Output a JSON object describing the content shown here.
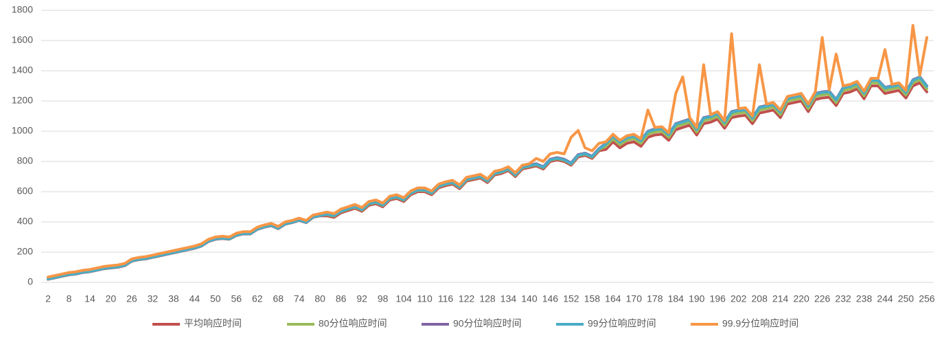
{
  "chart_data": {
    "type": "line",
    "categories": [
      2,
      null,
      null,
      8,
      null,
      null,
      14,
      null,
      null,
      20,
      null,
      null,
      26,
      null,
      null,
      32,
      null,
      null,
      38,
      null,
      null,
      44,
      null,
      null,
      50,
      null,
      null,
      56,
      null,
      null,
      62,
      null,
      null,
      68,
      null,
      null,
      74,
      null,
      null,
      80,
      null,
      null,
      86,
      null,
      null,
      92,
      null,
      null,
      98,
      null,
      null,
      104,
      null,
      null,
      110,
      null,
      null,
      116,
      null,
      null,
      122,
      null,
      null,
      128,
      null,
      null,
      134,
      null,
      null,
      140,
      null,
      null,
      146,
      null,
      null,
      152,
      null,
      null,
      158,
      null,
      null,
      164,
      null,
      null,
      170,
      null,
      null,
      178,
      null,
      null,
      184,
      null,
      null,
      190,
      null,
      null,
      196,
      null,
      null,
      202,
      null,
      null,
      208,
      null,
      null,
      214,
      null,
      null,
      220,
      null,
      null,
      226,
      null,
      null,
      232,
      null,
      null,
      238,
      null,
      null,
      244,
      null,
      null,
      250,
      null,
      null,
      256
    ],
    "ylim": [
      0,
      1800
    ],
    "yticks": [
      0,
      200,
      400,
      600,
      800,
      1000,
      1200,
      1400,
      1600,
      1800
    ],
    "grid": true,
    "legend": "bottom",
    "series": [
      {
        "name": "平均响应时间",
        "color": "#c0504d",
        "values": [
          20,
          30,
          40,
          50,
          55,
          65,
          70,
          80,
          90,
          95,
          100,
          110,
          140,
          150,
          155,
          165,
          175,
          185,
          195,
          205,
          215,
          225,
          240,
          270,
          285,
          290,
          285,
          310,
          320,
          320,
          350,
          365,
          375,
          355,
          385,
          395,
          410,
          395,
          430,
          440,
          440,
          430,
          460,
          475,
          490,
          470,
          510,
          520,
          500,
          545,
          555,
          535,
          580,
          600,
          600,
          580,
          625,
          640,
          650,
          620,
          670,
          680,
          690,
          660,
          710,
          720,
          740,
          700,
          750,
          760,
          770,
          750,
          800,
          810,
          800,
          775,
          830,
          840,
          820,
          870,
          880,
          930,
          890,
          920,
          930,
          900,
          960,
          975,
          980,
          940,
          1010,
          1025,
          1040,
          975,
          1050,
          1060,
          1080,
          1020,
          1090,
          1100,
          1105,
          1050,
          1120,
          1130,
          1140,
          1090,
          1180,
          1190,
          1200,
          1130,
          1210,
          1220,
          1225,
          1170,
          1250,
          1260,
          1280,
          1215,
          1300,
          1300,
          1250,
          1260,
          1270,
          1220,
          1300,
          1320,
          1260
        ]
      },
      {
        "name": "80分位响应时间",
        "color": "#9bbb59",
        "values": [
          23,
          33,
          43,
          53,
          58,
          68,
          73,
          83,
          93,
          98,
          103,
          113,
          143,
          153,
          158,
          168,
          178,
          188,
          198,
          208,
          218,
          228,
          243,
          273,
          288,
          293,
          288,
          313,
          323,
          323,
          353,
          368,
          378,
          358,
          388,
          398,
          413,
          398,
          433,
          443,
          448,
          438,
          468,
          483,
          498,
          478,
          518,
          528,
          508,
          553,
          563,
          543,
          588,
          608,
          608,
          588,
          633,
          648,
          658,
          628,
          678,
          688,
          698,
          668,
          718,
          728,
          748,
          708,
          758,
          768,
          778,
          758,
          808,
          818,
          808,
          783,
          838,
          848,
          828,
          878,
          900,
          950,
          910,
          940,
          950,
          920,
          980,
          995,
          1000,
          960,
          1030,
          1045,
          1060,
          995,
          1070,
          1080,
          1100,
          1040,
          1110,
          1120,
          1125,
          1070,
          1140,
          1150,
          1160,
          1110,
          1200,
          1210,
          1220,
          1150,
          1230,
          1240,
          1245,
          1190,
          1270,
          1280,
          1300,
          1235,
          1320,
          1320,
          1270,
          1280,
          1290,
          1240,
          1320,
          1340,
          1280
        ]
      },
      {
        "name": "90分位响应时间",
        "color": "#8064a2",
        "values": [
          26,
          36,
          46,
          56,
          61,
          71,
          76,
          86,
          96,
          101,
          106,
          116,
          146,
          156,
          161,
          171,
          181,
          191,
          201,
          211,
          221,
          231,
          246,
          276,
          291,
          296,
          291,
          316,
          326,
          326,
          356,
          371,
          381,
          361,
          391,
          401,
          416,
          401,
          436,
          446,
          455,
          445,
          475,
          490,
          505,
          485,
          525,
          535,
          515,
          560,
          570,
          550,
          595,
          615,
          615,
          595,
          640,
          655,
          665,
          635,
          685,
          695,
          705,
          675,
          725,
          735,
          755,
          715,
          765,
          775,
          785,
          765,
          815,
          825,
          815,
          790,
          845,
          855,
          835,
          885,
          920,
          970,
          930,
          960,
          970,
          940,
          1000,
          1015,
          1020,
          980,
          1050,
          1065,
          1080,
          1015,
          1090,
          1100,
          1120,
          1060,
          1130,
          1140,
          1145,
          1090,
          1160,
          1170,
          1180,
          1130,
          1220,
          1230,
          1240,
          1170,
          1250,
          1260,
          1265,
          1210,
          1290,
          1300,
          1320,
          1255,
          1340,
          1340,
          1290,
          1300,
          1310,
          1260,
          1340,
          1360,
          1300
        ]
      },
      {
        "name": "99分位响应时间",
        "color": "#4bacc6",
        "values": [
          22,
          32,
          42,
          52,
          57,
          67,
          72,
          82,
          92,
          97,
          102,
          112,
          142,
          152,
          157,
          167,
          177,
          187,
          197,
          207,
          217,
          227,
          242,
          272,
          287,
          292,
          287,
          312,
          322,
          322,
          352,
          367,
          377,
          357,
          387,
          397,
          412,
          397,
          432,
          442,
          451,
          441,
          471,
          486,
          501,
          481,
          521,
          531,
          511,
          556,
          566,
          546,
          591,
          611,
          611,
          591,
          636,
          651,
          661,
          631,
          681,
          691,
          701,
          671,
          721,
          731,
          751,
          711,
          761,
          771,
          781,
          761,
          811,
          821,
          811,
          786,
          841,
          851,
          831,
          881,
          916,
          966,
          926,
          956,
          966,
          936,
          996,
          1011,
          1016,
          976,
          1046,
          1061,
          1076,
          1011,
          1086,
          1096,
          1116,
          1056,
          1126,
          1136,
          1141,
          1086,
          1156,
          1166,
          1176,
          1126,
          1216,
          1226,
          1236,
          1166,
          1246,
          1256,
          1261,
          1206,
          1286,
          1296,
          1316,
          1251,
          1336,
          1336,
          1286,
          1296,
          1306,
          1256,
          1336,
          1356,
          1296
        ]
      },
      {
        "name": "99.9分位响应时间",
        "color": "#f79646",
        "values": [
          35,
          45,
          55,
          65,
          70,
          80,
          85,
          95,
          105,
          110,
          115,
          125,
          155,
          165,
          170,
          180,
          190,
          200,
          210,
          220,
          230,
          240,
          255,
          285,
          300,
          305,
          300,
          325,
          335,
          335,
          365,
          380,
          390,
          370,
          400,
          410,
          425,
          410,
          445,
          455,
          465,
          455,
          485,
          500,
          515,
          495,
          535,
          545,
          525,
          570,
          580,
          560,
          605,
          625,
          625,
          605,
          650,
          665,
          675,
          645,
          695,
          705,
          715,
          685,
          735,
          745,
          765,
          725,
          775,
          785,
          820,
          800,
          850,
          860,
          850,
          960,
          1005,
          890,
          870,
          920,
          930,
          980,
          940,
          970,
          980,
          950,
          1140,
          1025,
          1030,
          990,
          1250,
          1360,
          1090,
          1025,
          1440,
          1110,
          1130,
          1070,
          1645,
          1150,
          1155,
          1100,
          1440,
          1180,
          1190,
          1140,
          1230,
          1240,
          1250,
          1180,
          1260,
          1620,
          1275,
          1510,
          1300,
          1310,
          1330,
          1265,
          1350,
          1350,
          1540,
          1310,
          1320,
          1270,
          1700,
          1370,
          1620
        ]
      }
    ]
  }
}
